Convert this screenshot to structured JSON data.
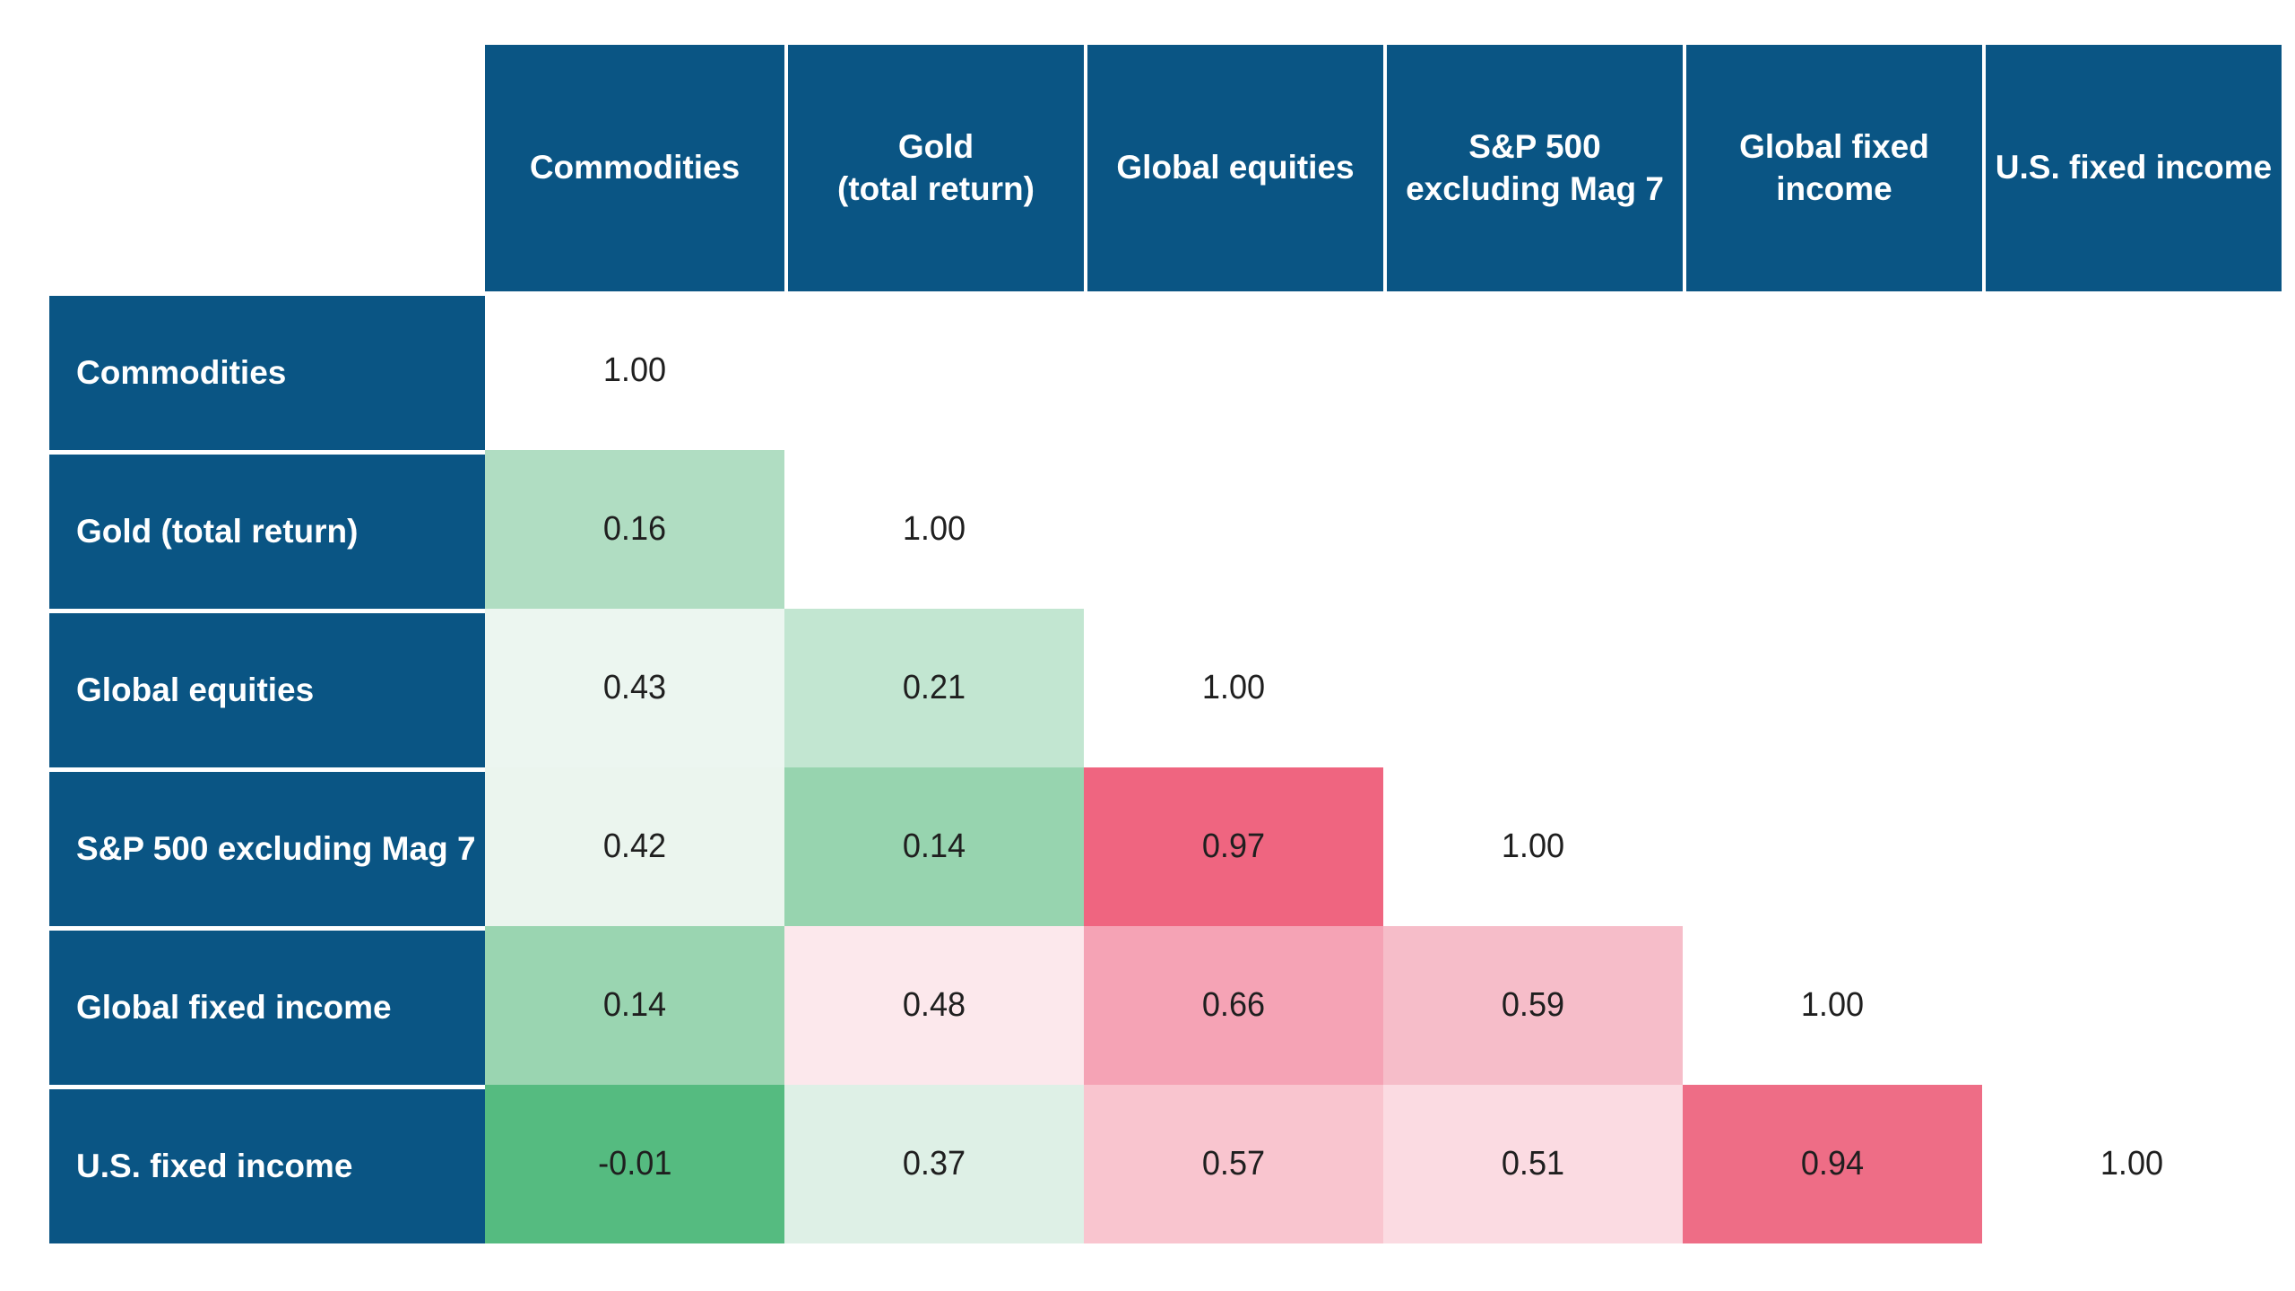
{
  "colors": {
    "header_blue": "#0a5584",
    "header_text": "#ffffff",
    "value_text": "#1f1f1f",
    "strong_green": "#55bb80",
    "strong_red": "#ef6580",
    "diagonal_bg": "#ffffff"
  },
  "table": {
    "columns": [
      "Commodities",
      "Gold\n(total return)",
      "Global equities",
      "S&P 500\nexcluding Mag 7",
      "Global fixed\nincome",
      "U.S. fixed income"
    ],
    "rows": [
      {
        "label": "Commodities",
        "cells": [
          {
            "v": "1.00",
            "bg": "#ffffff"
          }
        ]
      },
      {
        "label": "Gold (total return)",
        "cells": [
          {
            "v": "0.16",
            "bg": "#b0ddc2"
          },
          {
            "v": "1.00",
            "bg": "#ffffff"
          }
        ]
      },
      {
        "label": "Global equities",
        "cells": [
          {
            "v": "0.43",
            "bg": "#ecf6f0"
          },
          {
            "v": "0.21",
            "bg": "#c2e6d1"
          },
          {
            "v": "1.00",
            "bg": "#ffffff"
          }
        ]
      },
      {
        "label": "S&P 500 excluding Mag 7",
        "cells": [
          {
            "v": "0.42",
            "bg": "#ebf5ee"
          },
          {
            "v": "0.14",
            "bg": "#97d4af"
          },
          {
            "v": "0.97",
            "bg": "#ef6580"
          },
          {
            "v": "1.00",
            "bg": "#ffffff"
          }
        ]
      },
      {
        "label": "Global fixed income",
        "cells": [
          {
            "v": "0.14",
            "bg": "#9ad5b1"
          },
          {
            "v": "0.48",
            "bg": "#fce8ec"
          },
          {
            "v": "0.66",
            "bg": "#f5a3b5"
          },
          {
            "v": "0.59",
            "bg": "#f6bdc9"
          },
          {
            "v": "1.00",
            "bg": "#ffffff"
          }
        ]
      },
      {
        "label": "U.S. fixed income",
        "cells": [
          {
            "v": "-0.01",
            "bg": "#55bb80"
          },
          {
            "v": "0.37",
            "bg": "#def0e6"
          },
          {
            "v": "0.57",
            "bg": "#f9c5cf"
          },
          {
            "v": "0.51",
            "bg": "#fbdbe2"
          },
          {
            "v": "0.94",
            "bg": "#ee6d86"
          },
          {
            "v": "1.00",
            "bg": "#ffffff"
          }
        ]
      }
    ]
  },
  "chart_data": {
    "type": "heatmap",
    "categories": [
      "Commodities",
      "Gold (total return)",
      "Global equities",
      "S&P 500 excluding Mag 7",
      "Global fixed income",
      "U.S. fixed income"
    ],
    "matrix": [
      [
        1.0,
        null,
        null,
        null,
        null,
        null
      ],
      [
        0.16,
        1.0,
        null,
        null,
        null,
        null
      ],
      [
        0.43,
        0.21,
        1.0,
        null,
        null,
        null
      ],
      [
        0.42,
        0.14,
        0.97,
        1.0,
        null,
        null
      ],
      [
        0.14,
        0.48,
        0.66,
        0.59,
        1.0,
        null
      ],
      [
        -0.01,
        0.37,
        0.57,
        0.51,
        0.94,
        1.0
      ]
    ],
    "value_range": [
      -1,
      1
    ],
    "color_scale": {
      "low": "#55bb80",
      "mid": "#ffffff",
      "high": "#ef6580",
      "meaning": "green = low/negative correlation, red = high correlation"
    },
    "layout": "lower-triangle correlation matrix, diagonal = 1.00 on white, no gridlines between data cells, white separators between blue header cells"
  }
}
